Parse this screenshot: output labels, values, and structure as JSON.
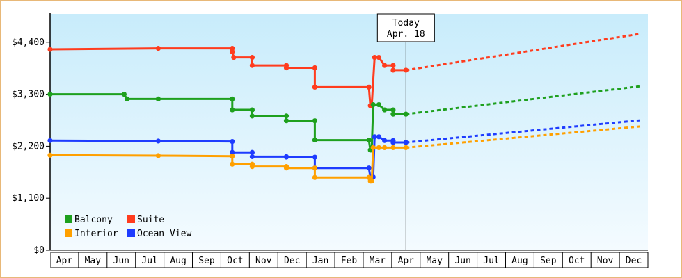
{
  "chart_data": {
    "type": "line",
    "y_ticks": [
      "$0",
      "$1,100",
      "$2,200",
      "$3,300",
      "$4,400"
    ],
    "ylim": [
      0,
      5000
    ],
    "months": [
      "Apr",
      "May",
      "Jun",
      "Jul",
      "Aug",
      "Sep",
      "Oct",
      "Nov",
      "Dec",
      "Jan",
      "Feb",
      "Mar",
      "Apr",
      "May",
      "Jun",
      "Jul",
      "Aug",
      "Sep",
      "Oct",
      "Nov",
      "Dec"
    ],
    "today": {
      "title": "Today",
      "date": "Apr. 18",
      "x": 12.5
    },
    "legend": [
      {
        "label": "Balcony",
        "color": "#1ea01e"
      },
      {
        "label": "Suite",
        "color": "#ff3c1e"
      },
      {
        "label": "Interior",
        "color": "#ffa000"
      },
      {
        "label": "Ocean View",
        "color": "#1e3cff"
      }
    ],
    "series": [
      {
        "name": "Suite",
        "color": "#ff3c1e",
        "points": [
          [
            0,
            4250
          ],
          [
            0,
            4250
          ],
          [
            3.8,
            4270
          ],
          [
            3.8,
            4270
          ],
          [
            6.4,
            4270
          ],
          [
            6.4,
            4200
          ],
          [
            6.45,
            4080
          ],
          [
            7.1,
            4080
          ],
          [
            7.1,
            3910
          ],
          [
            8.3,
            3910
          ],
          [
            8.3,
            3860
          ],
          [
            9.3,
            3860
          ],
          [
            9.3,
            3450
          ],
          [
            11.2,
            3450
          ],
          [
            11.25,
            3060
          ],
          [
            11.3,
            3060
          ],
          [
            11.4,
            4080
          ],
          [
            11.55,
            4080
          ],
          [
            11.75,
            3910
          ],
          [
            12.05,
            3910
          ],
          [
            12.05,
            3810
          ],
          [
            12.5,
            3810
          ]
        ],
        "forecast": [
          [
            12.5,
            3810
          ],
          [
            20.75,
            4580
          ]
        ]
      },
      {
        "name": "Balcony",
        "color": "#1ea01e",
        "points": [
          [
            0,
            3300
          ],
          [
            2.6,
            3300
          ],
          [
            2.7,
            3200
          ],
          [
            3.8,
            3200
          ],
          [
            6.4,
            3200
          ],
          [
            6.4,
            2970
          ],
          [
            7.1,
            2970
          ],
          [
            7.1,
            2840
          ],
          [
            8.3,
            2840
          ],
          [
            8.3,
            2740
          ],
          [
            9.3,
            2740
          ],
          [
            9.3,
            2330
          ],
          [
            11.2,
            2330
          ],
          [
            11.25,
            2120
          ],
          [
            11.3,
            2120
          ],
          [
            11.35,
            3080
          ],
          [
            11.55,
            3080
          ],
          [
            11.75,
            2970
          ],
          [
            12.05,
            2970
          ],
          [
            12.05,
            2880
          ],
          [
            12.5,
            2880
          ]
        ],
        "forecast": [
          [
            12.5,
            2880
          ],
          [
            20.75,
            3470
          ]
        ]
      },
      {
        "name": "Ocean View",
        "color": "#1e3cff",
        "points": [
          [
            0,
            2320
          ],
          [
            3.8,
            2310
          ],
          [
            6.4,
            2300
          ],
          [
            6.4,
            2070
          ],
          [
            7.1,
            2070
          ],
          [
            7.1,
            1980
          ],
          [
            8.3,
            1980
          ],
          [
            8.3,
            1970
          ],
          [
            9.3,
            1970
          ],
          [
            9.3,
            1740
          ],
          [
            11.2,
            1740
          ],
          [
            11.25,
            1550
          ],
          [
            11.35,
            1550
          ],
          [
            11.4,
            2400
          ],
          [
            11.55,
            2400
          ],
          [
            11.75,
            2320
          ],
          [
            12.05,
            2320
          ],
          [
            12.05,
            2280
          ],
          [
            12.5,
            2280
          ]
        ],
        "forecast": [
          [
            12.5,
            2280
          ],
          [
            20.75,
            2750
          ]
        ]
      },
      {
        "name": "Interior",
        "color": "#ffa000",
        "points": [
          [
            0,
            2010
          ],
          [
            3.8,
            2000
          ],
          [
            6.4,
            1990
          ],
          [
            6.4,
            1820
          ],
          [
            7.1,
            1820
          ],
          [
            7.1,
            1770
          ],
          [
            8.3,
            1770
          ],
          [
            8.3,
            1740
          ],
          [
            9.3,
            1740
          ],
          [
            9.3,
            1540
          ],
          [
            11.2,
            1540
          ],
          [
            11.25,
            1460
          ],
          [
            11.3,
            1460
          ],
          [
            11.35,
            2170
          ],
          [
            11.55,
            2170
          ],
          [
            11.75,
            2170
          ],
          [
            12.05,
            2170
          ],
          [
            12.5,
            2170
          ]
        ],
        "forecast": [
          [
            12.5,
            2170
          ],
          [
            20.75,
            2620
          ]
        ]
      }
    ]
  }
}
